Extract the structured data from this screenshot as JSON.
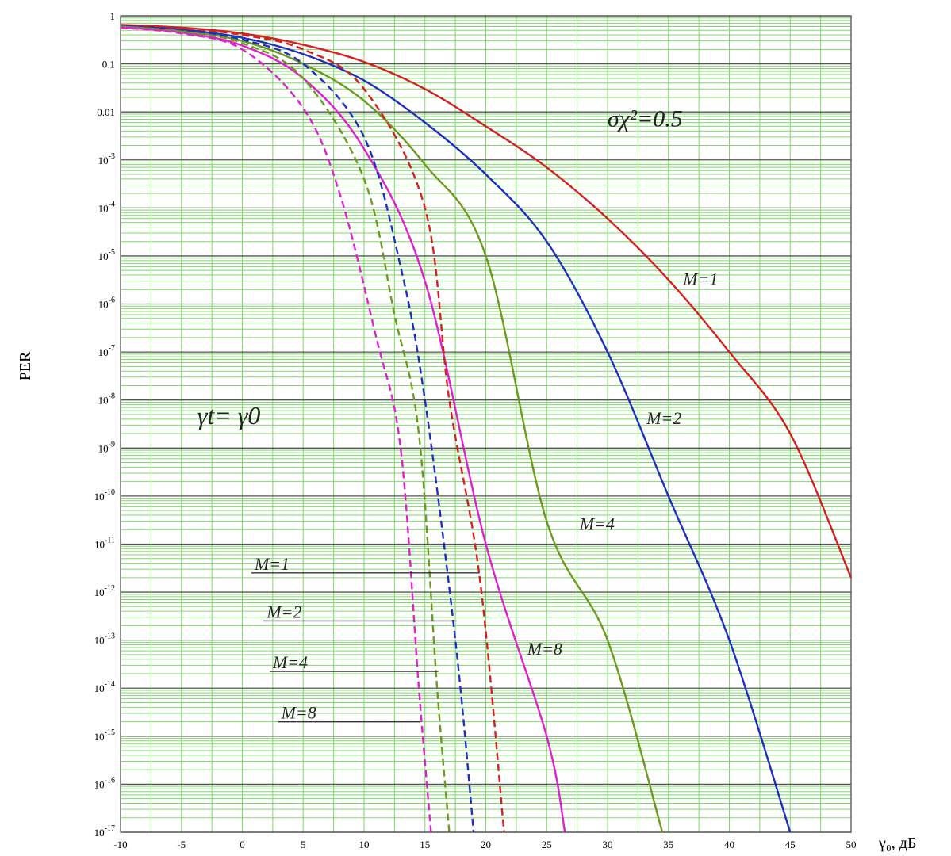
{
  "chart_data": {
    "type": "line",
    "ylabel": "PER",
    "xlabel": "γ₀, дБ",
    "xlim": [
      -10,
      50
    ],
    "ylim_exp": [
      -17,
      0
    ],
    "y_scale": "log",
    "grid": "on",
    "x_ticks": [
      "-10",
      "-5",
      "0",
      "5",
      "10",
      "15",
      "20",
      "25",
      "30",
      "35",
      "40",
      "45",
      "50"
    ],
    "y_ticks": [
      {
        "base": "1",
        "exp": ""
      },
      {
        "base": "0.1",
        "exp": ""
      },
      {
        "base": "0.01",
        "exp": ""
      },
      {
        "base": "10",
        "exp": "-3"
      },
      {
        "base": "10",
        "exp": "-4"
      },
      {
        "base": "10",
        "exp": "-5"
      },
      {
        "base": "10",
        "exp": "-6"
      },
      {
        "base": "10",
        "exp": "-7"
      },
      {
        "base": "10",
        "exp": "-8"
      },
      {
        "base": "10",
        "exp": "-9"
      },
      {
        "base": "10",
        "exp": "-10"
      },
      {
        "base": "10",
        "exp": "-11"
      },
      {
        "base": "10",
        "exp": "-12"
      },
      {
        "base": "10",
        "exp": "-13"
      },
      {
        "base": "10",
        "exp": "-14"
      },
      {
        "base": "10",
        "exp": "-15"
      },
      {
        "base": "10",
        "exp": "-16"
      },
      {
        "base": "10",
        "exp": "-17"
      }
    ],
    "series": [
      {
        "color": "#d42020",
        "dash": false,
        "x": [
          -10,
          -5,
          0,
          5,
          10,
          15,
          20,
          25,
          30,
          35,
          40,
          45,
          50
        ],
        "y": [
          0.65,
          0.57,
          0.43,
          0.25,
          0.11,
          0.03,
          0.005,
          0.0007,
          6e-05,
          3.2e-06,
          1e-07,
          2e-09,
          2e-12
        ]
      },
      {
        "color": "#1f2fbf",
        "dash": false,
        "x": [
          -10,
          -5,
          0,
          5,
          10,
          15,
          20,
          25,
          30,
          35,
          40,
          45
        ],
        "y": [
          0.62,
          0.52,
          0.35,
          0.16,
          0.045,
          0.006,
          0.0005,
          2e-05,
          1e-07,
          1e-10,
          1e-13,
          1e-17
        ]
      },
      {
        "color": "#6b9a1e",
        "dash": false,
        "x": [
          -10,
          -5,
          0,
          5,
          10,
          15,
          20,
          25,
          30,
          34.5
        ],
        "y": [
          0.6,
          0.48,
          0.3,
          0.1,
          0.017,
          0.0008,
          1e-05,
          3e-11,
          1e-13,
          1e-17
        ]
      },
      {
        "color": "#e020d0",
        "dash": false,
        "x": [
          -10,
          -5,
          0,
          5,
          10,
          15,
          20,
          25,
          26.5
        ],
        "y": [
          0.58,
          0.45,
          0.24,
          0.05,
          0.0017,
          3e-06,
          1e-11,
          1e-15,
          1e-17
        ]
      },
      {
        "color": "#d42020",
        "dash": true,
        "x": [
          -10,
          -5,
          0,
          5,
          10,
          15,
          17,
          19.5,
          21.5
        ],
        "y": [
          0.64,
          0.55,
          0.4,
          0.2,
          0.03,
          0.0001,
          1e-08,
          2e-12,
          1e-17
        ]
      },
      {
        "color": "#1f2fbf",
        "dash": true,
        "x": [
          -10,
          -5,
          0,
          5,
          10,
          13,
          15,
          17.5,
          19
        ],
        "y": [
          0.62,
          0.5,
          0.32,
          0.1,
          0.003,
          6e-06,
          1e-08,
          1e-13,
          1e-17
        ]
      },
      {
        "color": "#6b9a1e",
        "dash": true,
        "x": [
          -10,
          -5,
          0,
          5,
          10,
          12.5,
          14.5,
          16,
          17
        ],
        "y": [
          0.6,
          0.47,
          0.27,
          0.05,
          0.0004,
          6e-07,
          2e-09,
          1e-14,
          1e-17
        ]
      },
      {
        "color": "#e020d0",
        "dash": true,
        "x": [
          -10,
          -5,
          0,
          5,
          8,
          11,
          13,
          14.5,
          15.5
        ],
        "y": [
          0.57,
          0.43,
          0.2,
          0.012,
          0.0002,
          2e-07,
          1e-09,
          1e-14,
          1e-17
        ]
      }
    ],
    "annotations": [
      {
        "text": "σχ²=0.5",
        "x": 30,
        "exp": -2.3
      },
      {
        "text": "M=1",
        "x": 36.2,
        "exp": -5.6
      },
      {
        "text": "M=2",
        "x": 33.2,
        "exp": -8.5
      },
      {
        "text": "M=4",
        "x": 27.7,
        "exp": -10.7
      },
      {
        "text": "M=8",
        "x": 23.4,
        "exp": -13.3
      },
      {
        "text": "γt= γ0",
        "x": -3.7,
        "exp": -8.5
      }
    ],
    "pointer_labels": [
      {
        "text": "M=1",
        "label_x": 1,
        "exp": -11.6,
        "end_x": 19.5
      },
      {
        "text": "M=2",
        "label_x": 2,
        "exp": -12.6,
        "end_x": 17.6
      },
      {
        "text": "M=4",
        "label_x": 2.5,
        "exp": -13.65,
        "end_x": 16.1
      },
      {
        "text": "M=8",
        "label_x": 3.2,
        "exp": -14.7,
        "end_x": 14.6
      }
    ]
  }
}
